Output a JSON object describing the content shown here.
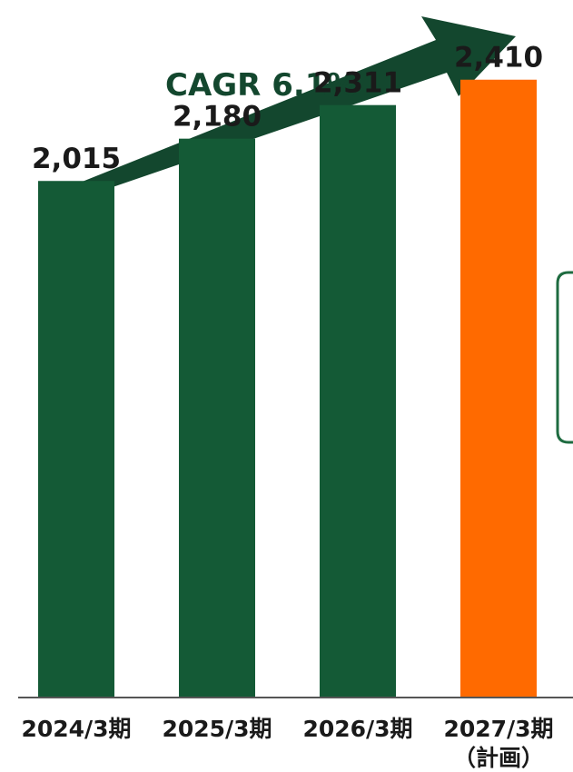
{
  "chart_data": {
    "type": "bar",
    "categories": [
      "2024/3期",
      "2025/3期",
      "2026/3期",
      "2027/3期"
    ],
    "category_sublabels": [
      "",
      "",
      "",
      "（計画）"
    ],
    "values": [
      2015,
      2180,
      2311,
      2410
    ],
    "value_labels": [
      "2,015",
      "2,180",
      "2,311",
      "2,410"
    ],
    "highlight_index": 3,
    "colors": {
      "bar": "#145a36",
      "highlight": "#ff6a00",
      "arrow": "#13472e",
      "callout_border": "#1e6b40"
    },
    "annotation": {
      "label": "CAGR 6.1%",
      "icon": "trend-arrow-up-right"
    },
    "ylim": [
      0,
      2650
    ],
    "grid": false,
    "legend": "none"
  }
}
